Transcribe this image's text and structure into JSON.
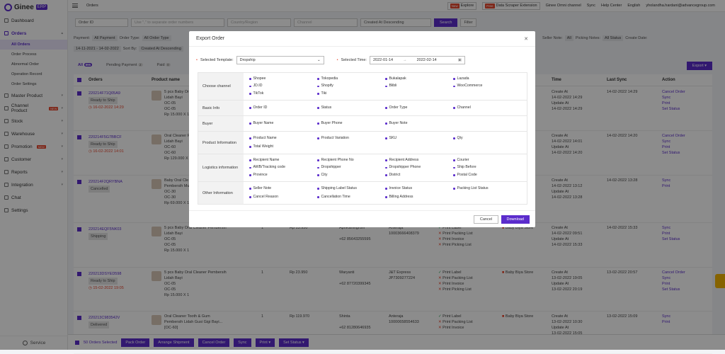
{
  "brand": {
    "name": "Ginee",
    "tag": "ERP"
  },
  "sidebar": [
    {
      "label": "Dashboard"
    },
    {
      "label": "Orders"
    },
    {
      "label": "Master Product"
    },
    {
      "label": "Channel Product",
      "badge": "NEW"
    },
    {
      "label": "Stock"
    },
    {
      "label": "Warehouse"
    },
    {
      "label": "Promotion",
      "badge": "NEW"
    },
    {
      "label": "Customer"
    },
    {
      "label": "Reports"
    },
    {
      "label": "Integration"
    },
    {
      "label": "Chat"
    },
    {
      "label": "Settings"
    }
  ],
  "sub_orders": [
    "All Orders",
    "Order Process",
    "Abnormal Order",
    "Operation Record",
    "Order Settings"
  ],
  "service": "Service",
  "topbar": {
    "crumb": "Orders",
    "new_tag": "New",
    "explore": "Explore",
    "free_tag": "Free",
    "scraper": "Data Scraper Extension",
    "omni": "Ginee Omni channel",
    "sync": "Sync",
    "help": "Help Center",
    "lang": "English",
    "user": "yholandha.hardani@advancegroup.com"
  },
  "search": {
    "field": "Order ID",
    "placeholder": "Use \",\" to separate order numbers",
    "country": "Country/Region",
    "channel": "Channel",
    "sort": "Created At Descending",
    "search_btn": "Search",
    "filter_btn": "Filter"
  },
  "filters": {
    "payment": "Payment:",
    "payment_v": "All Payment",
    "order_type": "Order Type:",
    "order_type_v": "All Order Type",
    "date": "14-11-2021 - 14-02-2022",
    "sortby": "Sort By:",
    "sortby_v": "Created At Descending",
    "seller_note": "Seller Note:",
    "seller_v": "All",
    "picking": "Picking Notes:",
    "picking_v": "All Status",
    "create": "Create Date:"
  },
  "tabs": {
    "all": "All",
    "all_count": "895",
    "pending": "Pending Payment",
    "pending_count": "2",
    "paid": "Paid",
    "paid_count": "0"
  },
  "export_btn": "Export",
  "columns": {
    "orders": "Orders",
    "product": "Product name",
    "time": "Time",
    "last_sync": "Last Sync",
    "action": "Action"
  },
  "rows": [
    {
      "id": "220214F71Q05A9",
      "status": "Ready to Ship",
      "due": "16-02-2022 14:29",
      "p1": "5 pcs Baby Or",
      "p2": "Lidah Bayi",
      "p3": "OC-05",
      "p4": "OC-05",
      "price": "Rp 15.000 X 1",
      "time": "Create At",
      "t1": "14-02-2022 14:29",
      "t2": "Update At",
      "t3": "14-02-2022 14:29",
      "sync": "14-02-2022 14:29",
      "a": [
        "Cancel Order",
        "Sync",
        "Print",
        "Set Status"
      ]
    },
    {
      "id": "220214F5G7BBCF",
      "status": "Ready to Ship",
      "due": "16-02-2022 14:01",
      "p1": "Oral Cleaner P",
      "p2": "Lidah Bayi",
      "p3": "OC-60",
      "p4": "OC-60",
      "price": "Rp 129.000 X",
      "time": "Create At",
      "t1": "14-02-2022 14:01",
      "t2": "Update At",
      "t3": "14-02-2022 14:20",
      "sync": "14-02-2022 14:20",
      "a": [
        "Cancel Order",
        "Sync",
        "Print",
        "Set Status"
      ]
    },
    {
      "id": "220214F2QRYBNA",
      "status": "Cancelled",
      "due": "",
      "p1": "Baby Oral Cle",
      "p2": "Pembersih Mu",
      "p3": "OC-30",
      "p4": "OC-30",
      "price": "Rp 69.000 X 1",
      "time": "Create At",
      "t1": "14-02-2022 13:12",
      "t2": "Update At",
      "t3": "14-02-2022 13:28",
      "sync": "14-02-2022 13:28",
      "a": [
        "Sync",
        "Print"
      ]
    },
    {
      "id": "220214EQF5NK03",
      "status": "Shipping",
      "due": "",
      "p1": "5 pcs Baby Oral Cleaner Pembersih",
      "p2": "Lidah Bayi",
      "p3": "OC-05",
      "p4": "OC-05",
      "price": "Rp 15.000 X 1",
      "qty": "1",
      "amount": "Rp 13.950",
      "buyer": "ApriKaningrum",
      "phone": "+62 85643255595",
      "courier": "Anteraja",
      "awb": "10003666408379",
      "print": [
        "Print Label",
        "Print Packing List",
        "Print Invoice",
        "Print Picking List"
      ],
      "store": "Baby Biya Store",
      "time": "Create At",
      "t1": "14-02-2022 09:51",
      "t2": "Update At",
      "t3": "14-02-2022 15:33",
      "sync": "14-02-2022 15:33",
      "a": [
        "Sync",
        "Print",
        "Set Status"
      ]
    },
    {
      "id": "220213DSYED598",
      "status": "Ready to Ship",
      "due": "15-02-2022 19:05",
      "p1": "5 pcs Baby Oral Cleaner Pembersih",
      "p2": "Lidah Bayi",
      "p3": "OC-05",
      "p4": "OC-05",
      "price": "Rp 15.000 X 1",
      "qty": "1",
      "amount": "Rp 23.950",
      "buyer": "Waryanti",
      "phone": "+62 87720399345",
      "courier": "J&T Express",
      "awb": "JP7309277224",
      "print": [
        "Print Label",
        "Print Packing List",
        "Print Invoice",
        "Print Picking List"
      ],
      "store": "Baby Biya Store",
      "time": "Create At",
      "t1": "13-02-2022 19:05",
      "t2": "Update At",
      "t3": "13-02-2022 20:19",
      "sync": "13-02-2022 20:57",
      "a": [
        "Cancel Order",
        "Sync",
        "Print",
        "Set Status"
      ]
    },
    {
      "id": "220213C983542V",
      "status": "Delivered",
      "due": "",
      "p1": "Oral Cleaner Tooth & Gum",
      "p2": "Pembersih Lidah Gusi Gigi Bayi...",
      "p3": "[OC-60]",
      "p4": "",
      "price": "Rp 15.000 X 1",
      "qty": "1",
      "amount": "Rp 119.970",
      "buyer": "Shinta",
      "phone": "+62 81280646935",
      "courier": "Anteraja",
      "awb": "10000658554633",
      "print": [
        "Print Label",
        "Print Packing List",
        "Print Invoice"
      ],
      "store": "Baby Biya Store",
      "time": "Create At",
      "t1": "13-02-2022 10:30",
      "t2": "Update At",
      "t3": "13-02-2022 15:05",
      "sync": "13-02-2022 15:09",
      "a": [
        "Sync",
        "Print"
      ]
    }
  ],
  "bottom": {
    "selected": "50 Orders Selected",
    "buttons": [
      "Pack Order",
      "Arrange Shipment",
      "Cancel Order",
      "Sync",
      "Print",
      "Set Status"
    ]
  },
  "modal": {
    "title": "Export Order",
    "template_label": "Selected Template:",
    "template_value": "Dropship",
    "time_label": "Selected Time:",
    "date_from": "2022-01-14",
    "date_sep": "→",
    "date_to": "2022-02-14",
    "groups": [
      {
        "label": "Choose channel",
        "items": [
          "Shopee",
          "Tokopedia",
          "Bukalapak",
          "Lazada",
          "JD.ID",
          "Shopify",
          "Blibli",
          "WooCommerce",
          "TikTok",
          "Tiki"
        ]
      },
      {
        "label": "Basic Info",
        "items": [
          "Order ID",
          "Status",
          "Order Type",
          "Channel"
        ]
      },
      {
        "label": "Buyer",
        "items": [
          "Buyer Name",
          "Buyer Phone",
          "Buyer Note"
        ]
      },
      {
        "label": "Product Information",
        "items": [
          "Product Name",
          "Product Variation",
          "SKU",
          "Qty",
          "Total Weight"
        ]
      },
      {
        "label": "Logistics information",
        "items": [
          "Recipient Name",
          "Recipient Phone No",
          "Recipient Address",
          "Courier",
          "AWB/Tracking code",
          "Dropshipper",
          "Dropshipper Phone",
          "Ship Before",
          "Province",
          "City",
          "District",
          "Postal Code"
        ]
      },
      {
        "label": "Other Information",
        "items": [
          "Seller Note",
          "Shipping Label Status",
          "Invoice Status",
          "Packing List Status",
          "Cancel Reason",
          "Cancellation Time",
          "Billing Address"
        ]
      }
    ],
    "cancel": "Cancel",
    "download": "Download"
  }
}
